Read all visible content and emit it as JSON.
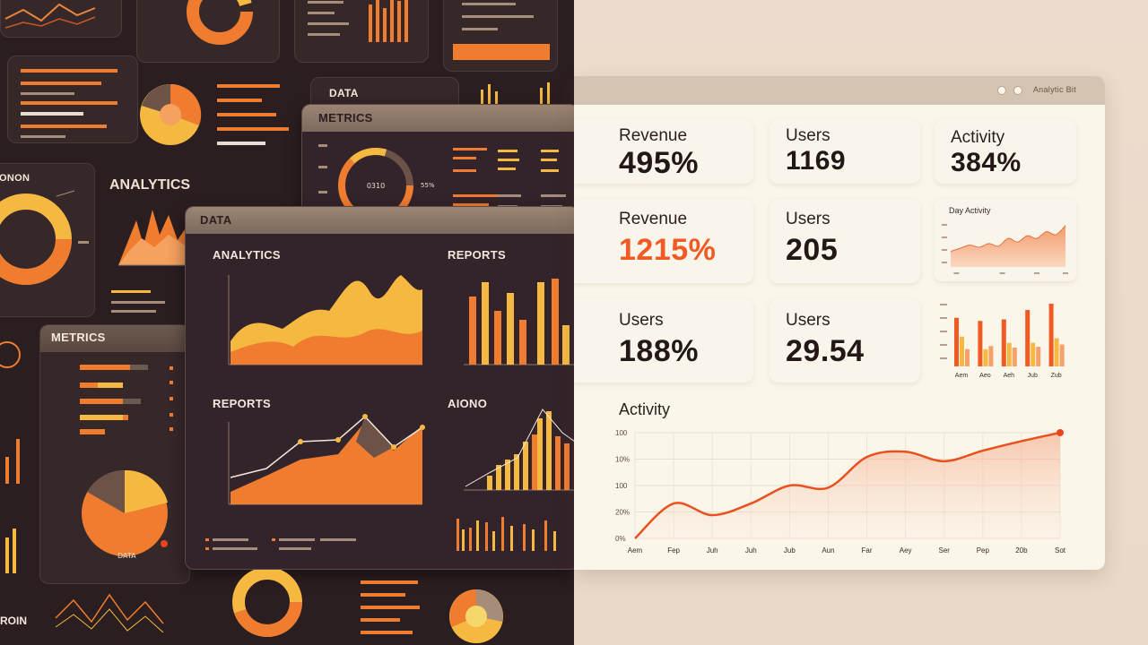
{
  "collage": {
    "data_a": "DATA",
    "metrics_top": "METRICS",
    "data_b": "DATA",
    "analytics": "ANALYTICS",
    "reports_a": "REPORTS",
    "reports_b": "REPORTS",
    "aiono": "AIONO",
    "metrics_left": "METRICS",
    "analytics_small": "ANALYTICS",
    "onon": "ONON",
    "roin": "ROIN",
    "data_c": "DATA"
  },
  "window": {
    "title": "Analytic Bit"
  },
  "cards": [
    {
      "title": "Revenue",
      "value": "495%"
    },
    {
      "title": "Users",
      "value": "1169"
    },
    {
      "title": "Activity",
      "value": "384%"
    },
    {
      "title": "Revenue",
      "value": "1215%"
    },
    {
      "title": "Users",
      "value": "205"
    },
    {
      "title": "Users",
      "value": "188%"
    },
    {
      "title": "Users",
      "value": "29.54"
    }
  ],
  "colors": {
    "accent": "#f05a23",
    "dark": "#231718",
    "panel": "#362729",
    "orange": "#f07c2f",
    "gold": "#f5b942"
  },
  "day_activity": {
    "title": "Day Activity"
  },
  "activity": {
    "title": "Activity"
  },
  "chart_data": [
    {
      "type": "line",
      "title": "Activity",
      "x": [
        "Aem",
        "Fep",
        "Juh",
        "Juh",
        "Jub",
        "Aun",
        "Far",
        "Aey",
        "Ser",
        "Pep",
        "20b",
        "Sot"
      ],
      "y_ticks": [
        "0%",
        "20%",
        "100",
        "10%",
        "100"
      ],
      "values": [
        0,
        33,
        22,
        33,
        50,
        48,
        77,
        82,
        73,
        83,
        92,
        100
      ],
      "ylim": [
        0,
        100
      ]
    },
    {
      "type": "area",
      "title": "Day Activity",
      "values": [
        30,
        36,
        42,
        38,
        45,
        40,
        55,
        48,
        60,
        55,
        68,
        62,
        80
      ],
      "ylim": [
        0,
        100
      ]
    },
    {
      "type": "bar",
      "categories": [
        "Aem",
        "Aeo",
        "Aeh",
        "Jub",
        "Zub"
      ],
      "series": [
        {
          "values": [
            62,
            58,
            60,
            72,
            80
          ]
        },
        {
          "values": [
            38,
            22,
            30,
            30,
            36
          ]
        },
        {
          "values": [
            22,
            26,
            24,
            25,
            28
          ]
        }
      ],
      "ylim": [
        0,
        80
      ]
    }
  ]
}
